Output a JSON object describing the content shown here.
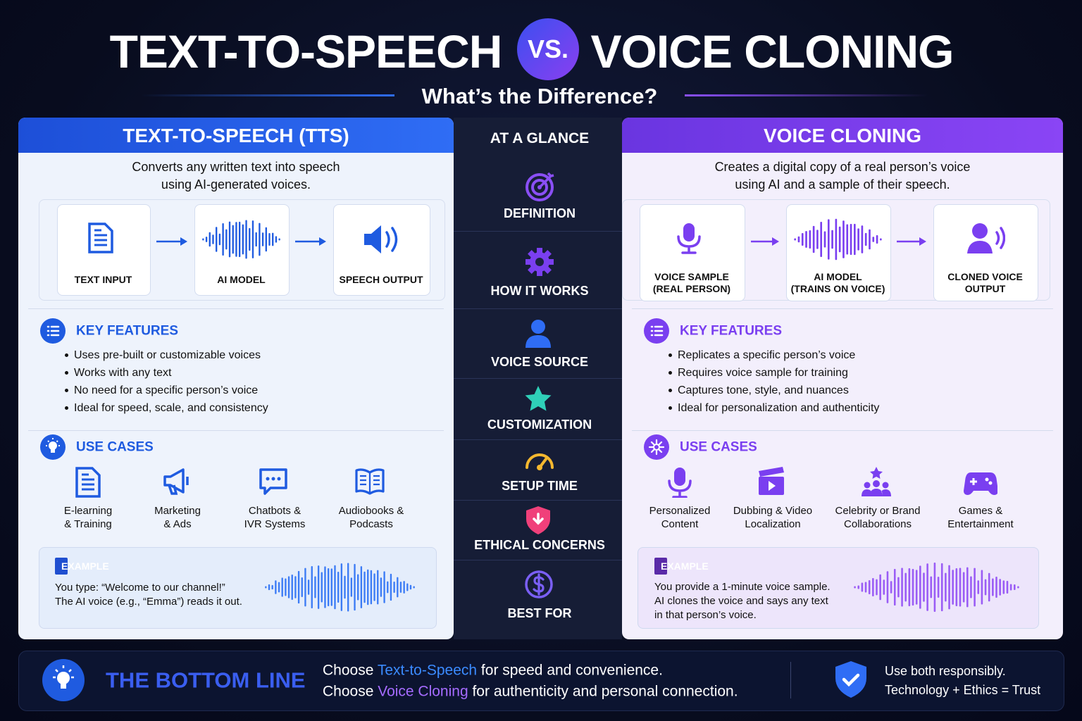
{
  "header": {
    "title_left": "TEXT-TO-SPEECH",
    "vs": "VS.",
    "title_right": "VOICE CLONING",
    "subtitle": "What’s the Difference?"
  },
  "panels": [
    {
      "title": "TEXT-TO-SPEECH (TTS)",
      "description": [
        "Converts any written text into speech",
        "using AI-generated voices."
      ],
      "flow": [
        [
          "TEXT INPUT"
        ],
        [
          "AI MODEL"
        ],
        [
          "SPEECH OUTPUT"
        ]
      ],
      "features_heading": "KEY FEATURES",
      "features": [
        "Uses pre-built or customizable voices",
        "Works with any text",
        "No need for a specific person’s voice",
        "Ideal for speed, scale, and consistency"
      ],
      "use_cases_heading": "USE CASES",
      "use_cases": [
        [
          "E-learning",
          "& Training"
        ],
        [
          "Marketing",
          "& Ads"
        ],
        [
          "Chatbots &",
          "IVR Systems"
        ],
        [
          "Audiobooks &",
          "Podcasts"
        ]
      ],
      "example_label": "EXAMPLE",
      "example": [
        "You type: “Welcome to our channel!”",
        "The AI voice (e.g., “Emma”) reads it out."
      ]
    },
    {
      "title": "VOICE CLONING",
      "description": [
        "Creates a digital copy of a real person’s voice",
        "using AI and a sample of their speech."
      ],
      "flow": [
        [
          "VOICE SAMPLE",
          "(REAL PERSON)"
        ],
        [
          "AI MODEL",
          "(TRAINS ON VOICE)"
        ],
        [
          "CLONED VOICE",
          "OUTPUT"
        ]
      ],
      "features_heading": "KEY FEATURES",
      "features": [
        "Replicates a specific person’s voice",
        "Requires voice sample for training",
        "Captures tone, style, and nuances",
        "Ideal for personalization and authenticity"
      ],
      "use_cases_heading": "USE CASES",
      "use_cases": [
        [
          "Personalized",
          "Content"
        ],
        [
          "Dubbing & Video",
          "Localization"
        ],
        [
          "Celebrity or Brand",
          "Collaborations"
        ],
        [
          "Games &",
          "Entertainment"
        ]
      ],
      "example_label": "EXAMPLE",
      "example": [
        "You provide a 1-minute voice sample.",
        "AI clones the voice and says any text",
        "in that person’s voice."
      ]
    }
  ],
  "glance": {
    "heading": "AT A GLANCE",
    "items": [
      "DEFINITION",
      "HOW IT WORKS",
      "VOICE SOURCE",
      "CUSTOMIZATION",
      "SETUP TIME",
      "ETHICAL CONCERNS",
      "BEST FOR"
    ]
  },
  "bottom": {
    "heading": "THE BOTTOM LINE",
    "lines": [
      [
        "Choose ",
        "Text-to-Speech",
        " for speed and convenience."
      ],
      [
        "Choose ",
        "Voice Cloning",
        " for authenticity and personal connection."
      ]
    ],
    "note": [
      "Use both responsibly.",
      "Technology + Ethics = Trust"
    ]
  }
}
